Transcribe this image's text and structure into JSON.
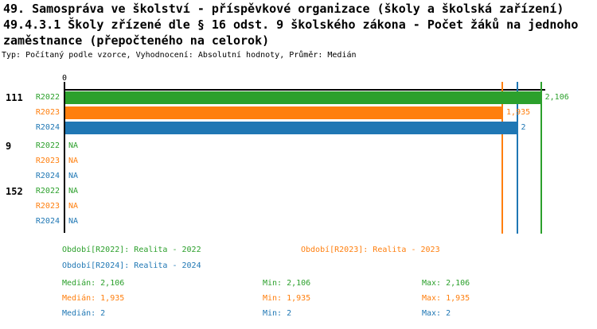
{
  "header": {
    "title_line1": "49. Samospráva ve školství - příspěvkové organizace (školy a školská zařízení)",
    "title_line2": "49.4.3.1 Školy zřízené dle § 16 odst. 9 školského zákona - Počet žáků na jednoho",
    "title_line3": "zaměstnance (přepočteného na celorok)",
    "meta": "Typ: Počítaný podle vzorce, Vyhodnocení: Absolutní hodnoty, Průměr: Medián"
  },
  "chart_data": {
    "type": "bar",
    "orientation": "horizontal",
    "x_axis": {
      "zero_label": "0",
      "xlim": [
        0,
        2.35
      ],
      "grid": false
    },
    "series": [
      {
        "id": "R2022",
        "legend_label": "Období[R2022]: Realita - 2022",
        "color": "#2ca02c",
        "median": 2.106,
        "min": 2.106,
        "max": 2.106
      },
      {
        "id": "R2023",
        "legend_label": "Období[R2023]: Realita - 2023",
        "color": "#ff7f0e",
        "median": 1.935,
        "min": 1.935,
        "max": 1.935
      },
      {
        "id": "R2024",
        "legend_label": "Období[R2024]: Realita - 2024",
        "color": "#1f77b4",
        "median": 2,
        "min": 2,
        "max": 2
      }
    ],
    "groups": [
      {
        "label": "111",
        "bars": [
          {
            "series": "R2022",
            "value": 2.106,
            "value_label": "2,106"
          },
          {
            "series": "R2023",
            "value": 1.935,
            "value_label": "1,935"
          },
          {
            "series": "R2024",
            "value": 2,
            "value_label": "2"
          }
        ]
      },
      {
        "label": "9",
        "bars": [
          {
            "series": "R2022",
            "value": null,
            "value_label": "NA"
          },
          {
            "series": "R2023",
            "value": null,
            "value_label": "NA"
          },
          {
            "series": "R2024",
            "value": null,
            "value_label": "NA"
          }
        ]
      },
      {
        "label": "152",
        "bars": [
          {
            "series": "R2022",
            "value": null,
            "value_label": "NA"
          },
          {
            "series": "R2023",
            "value": null,
            "value_label": "NA"
          },
          {
            "series": "R2024",
            "value": null,
            "value_label": "NA"
          }
        ]
      }
    ],
    "median_lines": [
      {
        "series": "R2022",
        "value": 2.106
      },
      {
        "series": "R2023",
        "value": 1.935
      },
      {
        "series": "R2024",
        "value": 2
      }
    ]
  },
  "stats": {
    "rows": [
      {
        "median": "Medián: 2,106",
        "min": "Min: 2,106",
        "max": "Max: 2,106"
      },
      {
        "median": "Medián: 1,935",
        "min": "Min: 1,935",
        "max": "Max: 1,935"
      },
      {
        "median": "Medián: 2",
        "min": "Min: 2",
        "max": "Max: 2"
      }
    ]
  }
}
